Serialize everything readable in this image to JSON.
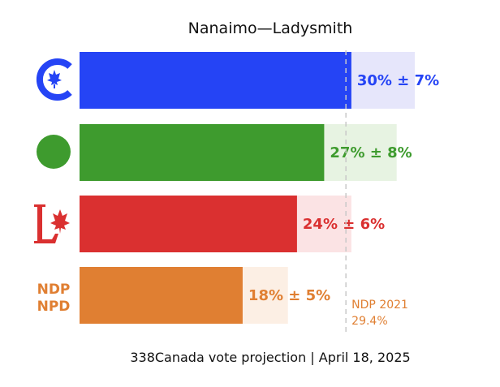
{
  "chart_data": {
    "type": "bar",
    "orientation": "horizontal",
    "title": "Nanaimo—Ladysmith",
    "footer": "338Canada vote projection | April 18, 2025",
    "xlim": [
      0,
      43
    ],
    "series": [
      {
        "party_icon": "conservative-logo-icon",
        "value": 30,
        "margin": 7,
        "label": "30% ± 7%",
        "color": "#2544f5",
        "light": "#e6e6fb"
      },
      {
        "party_icon": "green-party-logo-icon",
        "value": 27,
        "margin": 8,
        "label": "27% ± 8%",
        "color": "#3e9b2e",
        "light": "#e7f3e2"
      },
      {
        "party_icon": "liberal-logo-icon",
        "value": 24,
        "margin": 6,
        "label": "24% ± 6%",
        "color": "#da3030",
        "light": "#fbe3e4"
      },
      {
        "party_icon": "ndp-logo-icon",
        "value": 18,
        "margin": 5,
        "label": "18% ± 5%",
        "color": "#e07f32",
        "light": "#fcefe4",
        "logo_text": [
          "NDP",
          "NPD"
        ]
      }
    ],
    "reference": {
      "value": 29.4,
      "label_line1": "NDP 2021",
      "label_line2": "29.4%",
      "color": "#e07f32"
    },
    "grid": false,
    "legend": "none"
  }
}
